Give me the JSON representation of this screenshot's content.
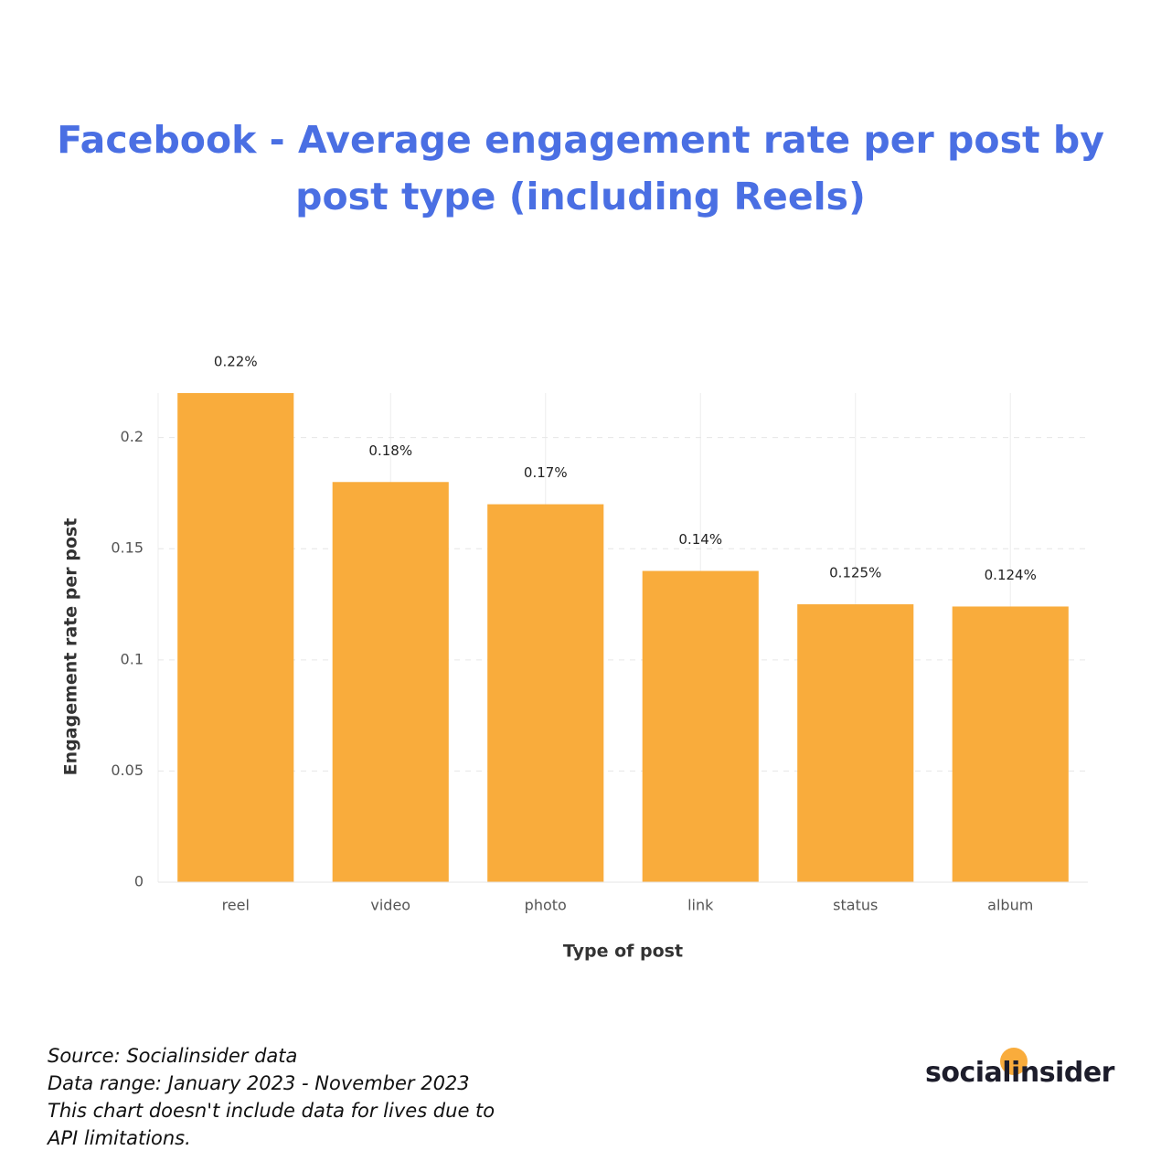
{
  "chart_data": {
    "type": "bar",
    "title": "Facebook - Average engagement rate per post by post type (including Reels)",
    "xlabel": "Type of post",
    "ylabel": "Engagement rate per post",
    "categories": [
      "reel",
      "video",
      "photo",
      "link",
      "status",
      "album"
    ],
    "values": [
      0.22,
      0.18,
      0.17,
      0.14,
      0.125,
      0.124
    ],
    "value_labels": [
      "0.22%",
      "0.18%",
      "0.17%",
      "0.14%",
      "0.125%",
      "0.124%"
    ],
    "color": "#f9ac3c",
    "ylim": [
      0,
      0.22
    ],
    "yticks": [
      0,
      0.05,
      0.1,
      0.15,
      0.2
    ],
    "grid": true
  },
  "footer": {
    "notes": [
      "Source: Socialinsider data",
      "Data range: January 2023 - November 2023",
      "This chart doesn't include data for lives due to API limitations."
    ],
    "logo": "socialinsider"
  }
}
